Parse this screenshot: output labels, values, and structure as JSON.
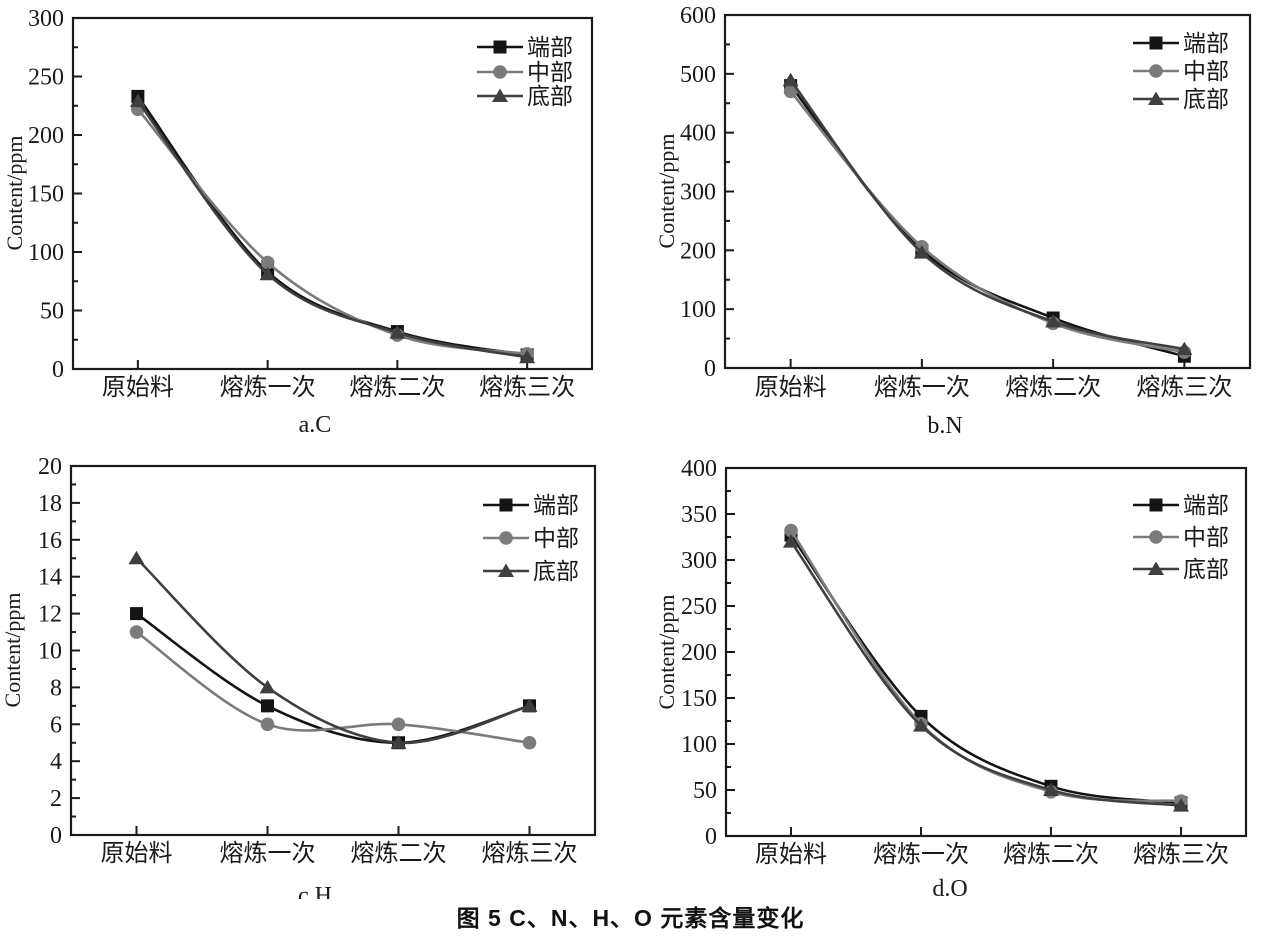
{
  "figure": {
    "caption": "图 5  C、N、H、O 元素含量变化",
    "text_color": "#1a1a1a",
    "axis_color": "#1a1a1a",
    "background": "#ffffff",
    "legend_labels": [
      "端部",
      "中部",
      "底部"
    ]
  },
  "chart_data": [
    {
      "type": "line",
      "panel_label": "a.C",
      "ylabel": "Content/ppm",
      "xlabel": "",
      "categories": [
        "原始料",
        "熔炼一次",
        "熔炼二次",
        "熔炼三次"
      ],
      "ylim": [
        0,
        300
      ],
      "ytick_major": 50,
      "ytick_minor": 25,
      "grid": false,
      "legend_position": "top-right-inside",
      "series": [
        {
          "name": "端部",
          "marker": "square",
          "color": "#141414",
          "values": [
            233,
            83,
            32,
            12
          ]
        },
        {
          "name": "中部",
          "marker": "circle",
          "color": "#7b7b7b",
          "values": [
            222,
            91,
            29,
            13
          ]
        },
        {
          "name": "底部",
          "marker": "triangle",
          "color": "#3f3f3f",
          "values": [
            229,
            81,
            31,
            10
          ]
        }
      ]
    },
    {
      "type": "line",
      "panel_label": "b.N",
      "ylabel": "Content/ppm",
      "xlabel": "",
      "categories": [
        "原始料",
        "熔炼一次",
        "熔炼二次",
        "熔炼三次"
      ],
      "ylim": [
        0,
        600
      ],
      "ytick_major": 100,
      "ytick_minor": 50,
      "grid": false,
      "legend_position": "top-right-inside",
      "series": [
        {
          "name": "端部",
          "marker": "square",
          "color": "#141414",
          "values": [
            480,
            200,
            85,
            20
          ]
        },
        {
          "name": "中部",
          "marker": "circle",
          "color": "#7b7b7b",
          "values": [
            470,
            206,
            76,
            27
          ]
        },
        {
          "name": "底部",
          "marker": "triangle",
          "color": "#3f3f3f",
          "values": [
            489,
            196,
            79,
            32
          ]
        }
      ]
    },
    {
      "type": "line",
      "panel_label": "c.H",
      "ylabel": "Content/ppm",
      "xlabel": "",
      "categories": [
        "原始料",
        "熔炼一次",
        "熔炼二次",
        "熔炼三次"
      ],
      "ylim": [
        0,
        20
      ],
      "ytick_major": 2,
      "ytick_minor": 1,
      "grid": false,
      "legend_position": "top-right-inside",
      "series": [
        {
          "name": "端部",
          "marker": "square",
          "color": "#141414",
          "values": [
            12,
            7,
            5,
            7
          ]
        },
        {
          "name": "中部",
          "marker": "circle",
          "color": "#7b7b7b",
          "values": [
            11,
            6,
            6,
            5
          ]
        },
        {
          "name": "底部",
          "marker": "triangle",
          "color": "#3f3f3f",
          "values": [
            15,
            8,
            5,
            7
          ]
        }
      ]
    },
    {
      "type": "line",
      "panel_label": "d.O",
      "ylabel": "Content/ppm",
      "xlabel": "",
      "categories": [
        "原始料",
        "熔炼一次",
        "熔炼二次",
        "熔炼三次"
      ],
      "ylim": [
        0,
        400
      ],
      "ytick_major": 50,
      "ytick_minor": 25,
      "grid": false,
      "legend_position": "top-right-inside",
      "series": [
        {
          "name": "端部",
          "marker": "square",
          "color": "#141414",
          "values": [
            327,
            130,
            54,
            36
          ]
        },
        {
          "name": "中部",
          "marker": "circle",
          "color": "#7b7b7b",
          "values": [
            332,
            122,
            48,
            38
          ]
        },
        {
          "name": "底部",
          "marker": "triangle",
          "color": "#3f3f3f",
          "values": [
            320,
            120,
            50,
            33
          ]
        }
      ]
    }
  ]
}
